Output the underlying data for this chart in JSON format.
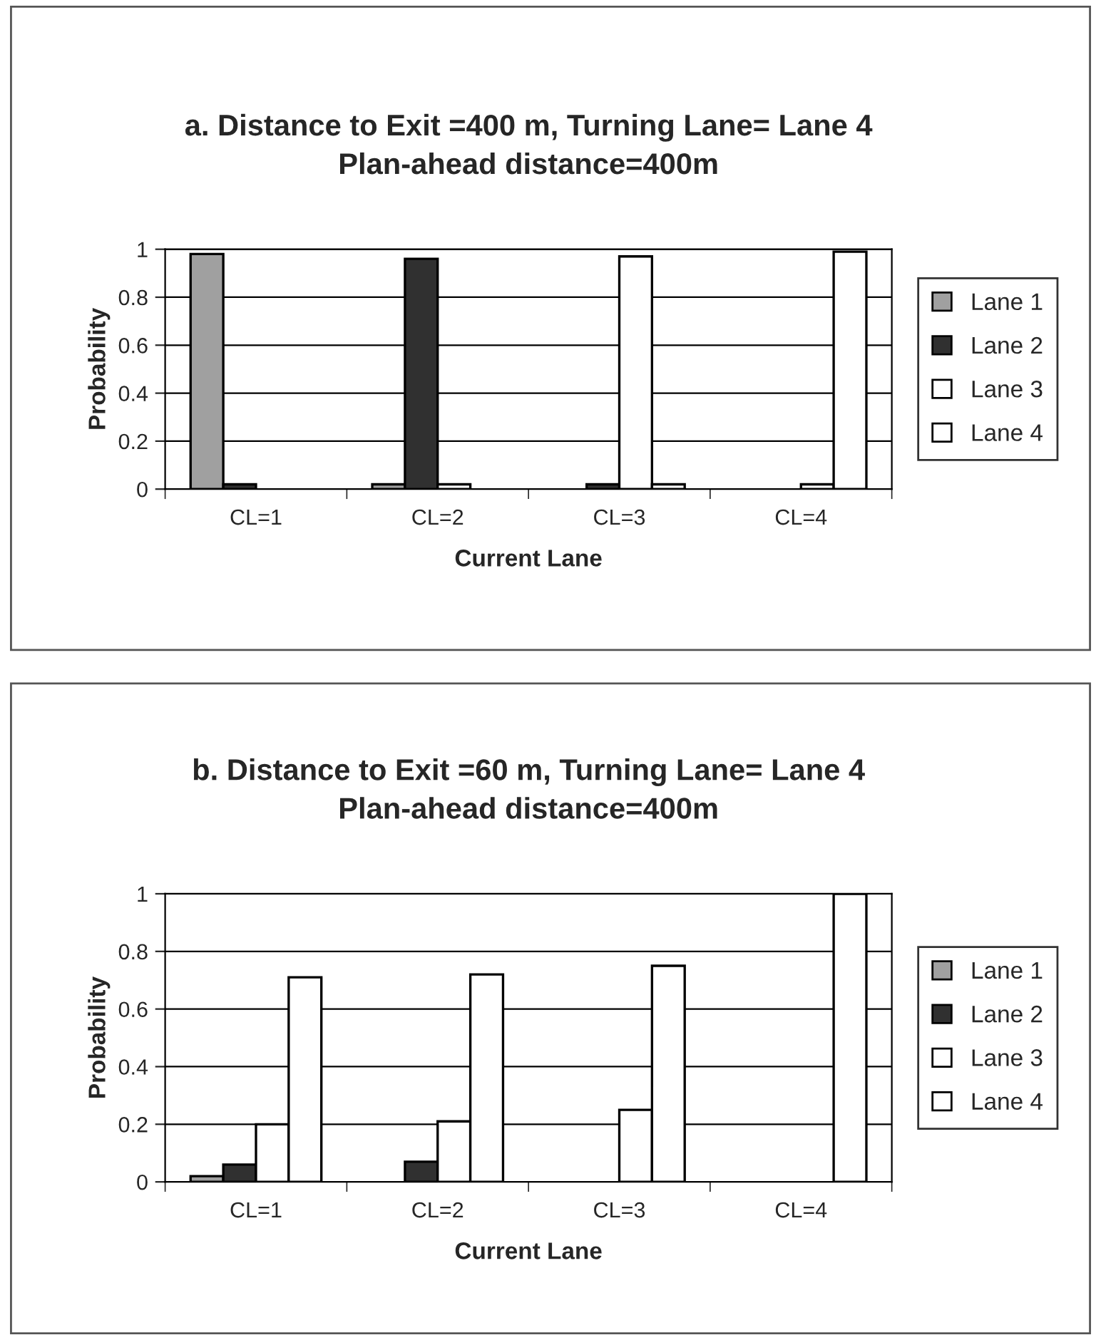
{
  "chart_data": [
    {
      "type": "bar",
      "title": "a. Distance to Exit =400 m, Turning Lane= Lane 4\nPlan-ahead distance=400m",
      "xlabel": "Current Lane",
      "ylabel": "Probability",
      "categories": [
        "CL=1",
        "CL=2",
        "CL=3",
        "CL=4"
      ],
      "ylim": [
        0,
        1
      ],
      "yticks": [
        0,
        0.2,
        0.4,
        0.6,
        0.8,
        1
      ],
      "grid": "y",
      "legend": "right",
      "series": [
        {
          "name": "Lane 1",
          "color": "#a0a0a0",
          "values": [
            0.98,
            0.02,
            0,
            0
          ]
        },
        {
          "name": "Lane 2",
          "color": "#303030",
          "values": [
            0.02,
            0.96,
            0.02,
            0
          ]
        },
        {
          "name": "Lane 3",
          "color": "#ffffff",
          "values": [
            0,
            0.02,
            0.97,
            0.02
          ]
        },
        {
          "name": "Lane 4",
          "color": "#ffffff",
          "values": [
            0,
            0,
            0.02,
            0.99
          ]
        }
      ]
    },
    {
      "type": "bar",
      "title": "b. Distance to Exit =60 m, Turning Lane= Lane 4\nPlan-ahead distance=400m",
      "xlabel": "Current Lane",
      "ylabel": "Probability",
      "categories": [
        "CL=1",
        "CL=2",
        "CL=3",
        "CL=4"
      ],
      "ylim": [
        0,
        1
      ],
      "yticks": [
        0,
        0.2,
        0.4,
        0.6,
        0.8,
        1
      ],
      "grid": "y",
      "legend": "right",
      "series": [
        {
          "name": "Lane 1",
          "color": "#a0a0a0",
          "values": [
            0.02,
            0,
            0,
            0
          ]
        },
        {
          "name": "Lane 2",
          "color": "#303030",
          "values": [
            0.06,
            0.07,
            0,
            0
          ]
        },
        {
          "name": "Lane 3",
          "color": "#ffffff",
          "values": [
            0.2,
            0.21,
            0.25,
            0
          ]
        },
        {
          "name": "Lane 4",
          "color": "#ffffff",
          "values": [
            0.71,
            0.72,
            0.75,
            1.0
          ]
        }
      ]
    }
  ]
}
